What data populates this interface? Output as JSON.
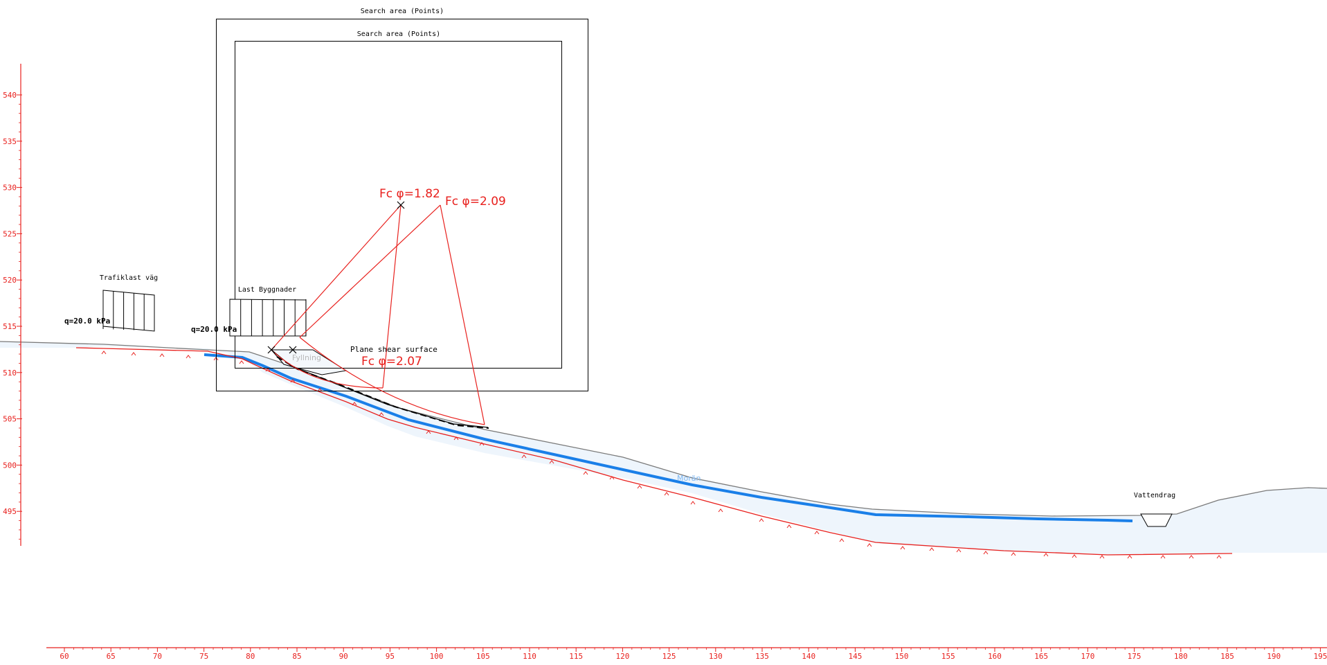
{
  "colors": {
    "axis": "#e8201d",
    "result": "#e8201d",
    "outline": "#000000",
    "soil_fill": "#eef5fc",
    "ground_line": "#7a7a7a",
    "moran_line": "#1a7fe8",
    "moran_label": "#7fb8f2",
    "rock_line": "#e8201d"
  },
  "axes": {
    "x_ticks": [
      "60",
      "65",
      "70",
      "75",
      "80",
      "85",
      "90",
      "95",
      "100",
      "105",
      "110",
      "115",
      "120",
      "125",
      "130",
      "135",
      "140",
      "145",
      "150",
      "155",
      "160",
      "165",
      "170",
      "175",
      "180",
      "185",
      "190",
      "195"
    ],
    "y_ticks": [
      "540",
      "535",
      "530",
      "525",
      "520",
      "515",
      "510",
      "505",
      "500",
      "495"
    ]
  },
  "search_areas": {
    "outer_label": "Search area (Points)",
    "inner_label": "Search area (Points)"
  },
  "loads": {
    "traffic": {
      "title": "Trafiklast väg",
      "value": "q=20.0  kPa"
    },
    "buildings": {
      "title": "Last Byggnader",
      "value": "q=20.0  kPa"
    }
  },
  "results": {
    "circular_1": "Fc φ=1.82",
    "circular_2": "Fc φ=2.09",
    "plane_title": "Plane shear surface",
    "plane_value": "Fc φ=2.07"
  },
  "materials": {
    "fill": "Fyllning",
    "moraine": "Morän",
    "watercourse": "Vattendrag"
  }
}
